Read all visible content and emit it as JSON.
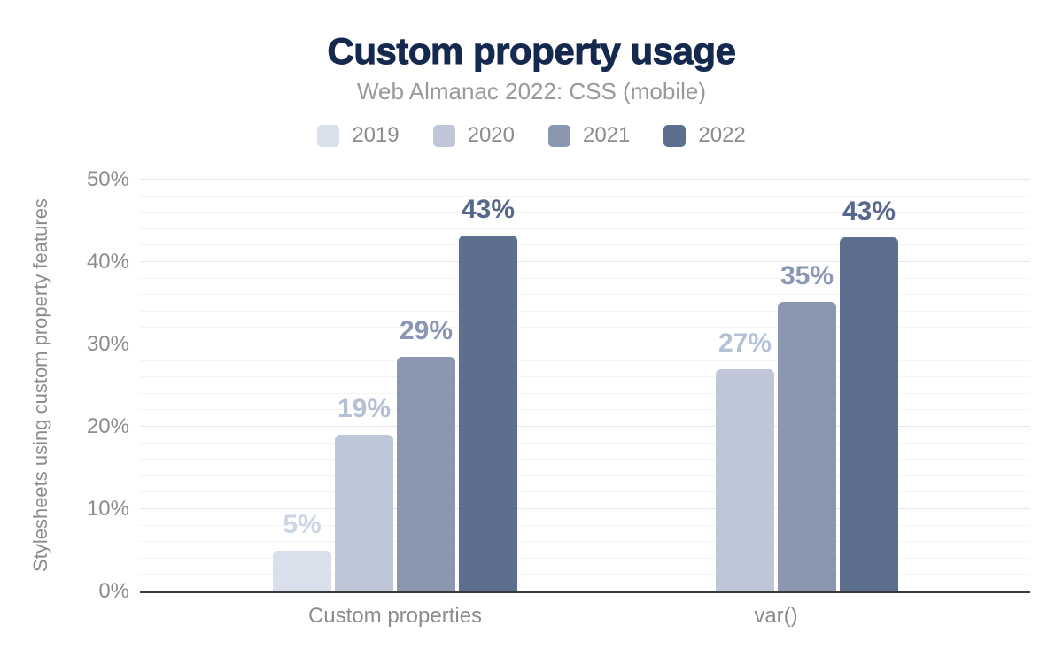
{
  "chart_data": {
    "type": "bar",
    "title": "Custom property usage",
    "subtitle": "Web Almanac 2022: CSS (mobile)",
    "ylabel": "Stylesheets using custom property features",
    "xlabel": "",
    "categories": [
      "Custom properties",
      "var()"
    ],
    "series": [
      {
        "name": "2019",
        "color": "#d9dfeb",
        "label_color": "#ccd5e6",
        "values": [
          5,
          null
        ],
        "labels": [
          "5%",
          null
        ]
      },
      {
        "name": "2020",
        "color": "#bdc7d8",
        "label_color": "#b4c0d6",
        "values": [
          19,
          27
        ],
        "labels": [
          "19%",
          "27%"
        ]
      },
      {
        "name": "2021",
        "color": "#8b97b1",
        "label_color": "#8a97b4",
        "values": [
          28.5,
          35.2
        ],
        "labels": [
          "29%",
          "35%"
        ]
      },
      {
        "name": "2022",
        "color": "#5e6e8e",
        "label_color": "#55688c",
        "values": [
          43.2,
          43
        ],
        "labels": [
          "43%",
          "43%"
        ]
      }
    ],
    "ylim": [
      0,
      50
    ],
    "ytick_step": 10,
    "minor_step": 2,
    "ytick_labels": [
      "0%",
      "10%",
      "20%",
      "30%",
      "40%",
      "50%"
    ],
    "legend_position": "top",
    "grid": "horizontal"
  },
  "colors": {
    "title": "#15294e",
    "subtitle": "#999999",
    "axis_text": "#8c8c8c",
    "grid_major": "#e6e6e6",
    "grid_minor": "#f4f4f4",
    "baseline": "#3a3a3a",
    "background": "#ffffff"
  }
}
